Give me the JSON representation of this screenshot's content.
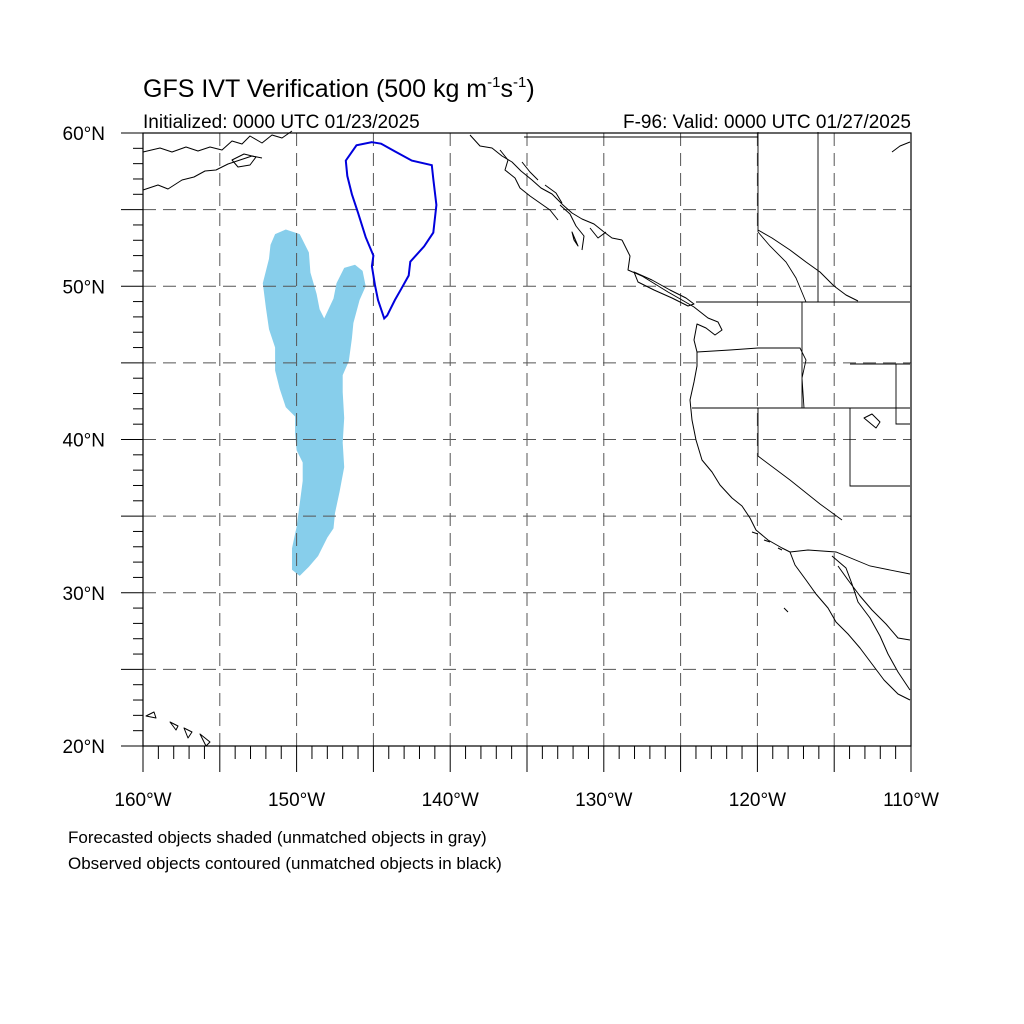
{
  "header": {
    "title_main": "GFS IVT Verification (500 kg m",
    "title_exp1": "-1",
    "title_mid": "s",
    "title_exp2": "-1",
    "title_close": ")",
    "initialized": "Initialized: 0000 UTC 01/23/2025",
    "valid": "F-96: Valid: 0000 UTC 01/27/2025"
  },
  "map": {
    "lon_range": [
      -160,
      -110
    ],
    "lat_range": [
      20,
      60
    ],
    "grid_lons": [
      -155,
      -150,
      -145,
      -140,
      -135,
      -130,
      -125,
      -120,
      -115
    ],
    "grid_lats": [
      25,
      30,
      35,
      40,
      45,
      50,
      55
    ],
    "lon_labels": [
      {
        "lon": -160,
        "text": "160°W"
      },
      {
        "lon": -150,
        "text": "150°W"
      },
      {
        "lon": -140,
        "text": "140°W"
      },
      {
        "lon": -130,
        "text": "130°W"
      },
      {
        "lon": -120,
        "text": "120°W"
      },
      {
        "lon": -110,
        "text": "110°W"
      }
    ],
    "lat_labels": [
      {
        "lat": 60,
        "text": "60°N"
      },
      {
        "lat": 50,
        "text": "50°N"
      },
      {
        "lat": 40,
        "text": "40°N"
      },
      {
        "lat": 30,
        "text": "30°N"
      },
      {
        "lat": 20,
        "text": "20°N"
      }
    ],
    "forecast_fill_color": "#87ceeb",
    "observed_contour_color": "#0000dd"
  },
  "objects": {
    "forecast_object": [
      [
        -151.4,
        53.4
      ],
      [
        -150.7,
        53.7
      ],
      [
        -149.8,
        53.4
      ],
      [
        -149.2,
        52.2
      ],
      [
        -149.1,
        50.9
      ],
      [
        -148.7,
        49.5
      ],
      [
        -148.5,
        48.5
      ],
      [
        -148.2,
        47.9
      ],
      [
        -147.6,
        49.2
      ],
      [
        -147.4,
        50.2
      ],
      [
        -146.9,
        51.2
      ],
      [
        -146.2,
        51.4
      ],
      [
        -145.7,
        51.0
      ],
      [
        -145.5,
        50.0
      ],
      [
        -145.9,
        49.1
      ],
      [
        -146.3,
        47.6
      ],
      [
        -146.4,
        46.6
      ],
      [
        -146.6,
        45.1
      ],
      [
        -147.0,
        44.2
      ],
      [
        -147.0,
        43.1
      ],
      [
        -146.9,
        41.4
      ],
      [
        -147.0,
        39.8
      ],
      [
        -146.9,
        38.2
      ],
      [
        -147.2,
        36.6
      ],
      [
        -147.5,
        35.2
      ],
      [
        -147.6,
        34.2
      ],
      [
        -148.0,
        33.6
      ],
      [
        -148.6,
        32.4
      ],
      [
        -149.2,
        31.7
      ],
      [
        -149.8,
        31.1
      ],
      [
        -150.3,
        31.5
      ],
      [
        -150.3,
        32.9
      ],
      [
        -150.0,
        34.3
      ],
      [
        -149.8,
        35.8
      ],
      [
        -149.6,
        37.3
      ],
      [
        -149.6,
        38.5
      ],
      [
        -150.0,
        39.3
      ],
      [
        -150.1,
        40.4
      ],
      [
        -150.1,
        41.5
      ],
      [
        -150.7,
        42.1
      ],
      [
        -151.1,
        43.3
      ],
      [
        -151.4,
        44.5
      ],
      [
        -151.4,
        46.0
      ],
      [
        -151.8,
        47.2
      ],
      [
        -152.0,
        48.6
      ],
      [
        -152.2,
        50.2
      ],
      [
        -151.8,
        51.8
      ],
      [
        -151.7,
        52.7
      ]
    ],
    "observed_object": [
      [
        -145.1,
        59.4
      ],
      [
        -144.5,
        59.3
      ],
      [
        -143.6,
        58.8
      ],
      [
        -142.5,
        58.2
      ],
      [
        -141.2,
        57.9
      ],
      [
        -141.1,
        57.0
      ],
      [
        -140.9,
        55.3
      ],
      [
        -141.1,
        53.5
      ],
      [
        -141.7,
        52.6
      ],
      [
        -142.6,
        51.6
      ],
      [
        -142.7,
        50.7
      ],
      [
        -143.2,
        49.8
      ],
      [
        -143.6,
        49.1
      ],
      [
        -144.1,
        48.1
      ],
      [
        -144.3,
        47.9
      ],
      [
        -144.7,
        49.1
      ],
      [
        -144.9,
        50.1
      ],
      [
        -145.1,
        51.3
      ],
      [
        -145.0,
        52.0
      ],
      [
        -145.5,
        53.2
      ],
      [
        -146.0,
        54.8
      ],
      [
        -146.4,
        56.0
      ],
      [
        -146.7,
        57.2
      ],
      [
        -146.8,
        58.2
      ],
      [
        -146.1,
        59.2
      ]
    ]
  },
  "notes": {
    "line1": "Forecasted objects shaded (unmatched objects in gray)",
    "line2": "Observed objects contoured (unmatched objects in black)"
  }
}
